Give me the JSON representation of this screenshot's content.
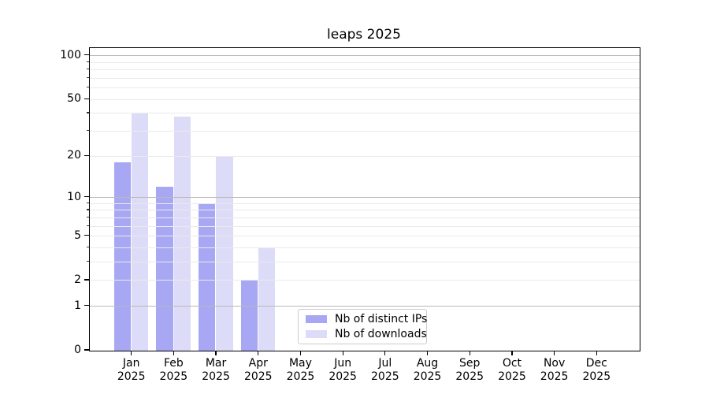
{
  "title": "leaps 2025",
  "colors": {
    "distinct_ips": "#a7a7f3",
    "downloads": "#dcdcf8",
    "major_grid": "#b9b9b9",
    "minor_grid": "#eaeaea",
    "spine": "#000000",
    "legend_border": "#cccccc",
    "background": "#ffffff",
    "text": "#000000"
  },
  "legend": {
    "items": [
      {
        "label": "Nb of distinct IPs",
        "color": "#a7a7f3"
      },
      {
        "label": "Nb of downloads",
        "color": "#dcdcf8"
      }
    ]
  },
  "chart_data": {
    "type": "bar",
    "title": "leaps 2025",
    "categories": [
      "Jan 2025",
      "Feb 2025",
      "Mar 2025",
      "Apr 2025",
      "May 2025",
      "Jun 2025",
      "Jul 2025",
      "Aug 2025",
      "Sep 2025",
      "Oct 2025",
      "Nov 2025",
      "Dec 2025"
    ],
    "months": [
      "Jan",
      "Feb",
      "Mar",
      "Apr",
      "May",
      "Jun",
      "Jul",
      "Aug",
      "Sep",
      "Oct",
      "Nov",
      "Dec"
    ],
    "year_label": "2025",
    "series": [
      {
        "name": "Nb of distinct IPs",
        "color": "#a7a7f3",
        "values": [
          18,
          12,
          9,
          2,
          0,
          0,
          0,
          0,
          0,
          0,
          0,
          0
        ]
      },
      {
        "name": "Nb of downloads",
        "color": "#dcdcf8",
        "values": [
          40,
          38,
          20,
          4,
          0,
          0,
          0,
          0,
          0,
          0,
          0,
          0
        ]
      }
    ],
    "xlabel": "",
    "ylabel": "",
    "yscale": "log1p",
    "ylim": [
      0,
      113
    ],
    "yticks": [
      0,
      1,
      2,
      5,
      10,
      20,
      50,
      100
    ],
    "major_gridlines": [
      1,
      10,
      100
    ],
    "minor_gridlines": [
      2,
      3,
      4,
      5,
      6,
      7,
      8,
      9,
      20,
      30,
      40,
      50,
      60,
      70,
      80,
      90
    ],
    "grid": "on",
    "grid_above_bars": true,
    "legend_position": "lower-center"
  }
}
